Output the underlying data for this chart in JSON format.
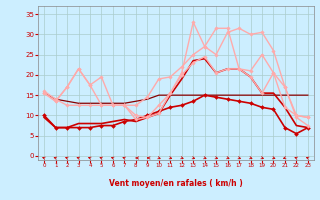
{
  "background_color": "#cceeff",
  "grid_color": "#aacccc",
  "x_labels": [
    "0",
    "1",
    "2",
    "3",
    "4",
    "5",
    "6",
    "7",
    "8",
    "9",
    "10",
    "11",
    "12",
    "13",
    "14",
    "15",
    "16",
    "17",
    "18",
    "19",
    "20",
    "21",
    "22",
    "23"
  ],
  "xlabel": "Vent moyen/en rafales ( km/h )",
  "xlabel_color": "#cc0000",
  "ylabel_color": "#cc0000",
  "yticks": [
    0,
    5,
    10,
    15,
    20,
    25,
    30,
    35
  ],
  "ylim": [
    -1,
    37
  ],
  "xlim": [
    -0.5,
    23.5
  ],
  "lines": [
    {
      "y": [
        15.5,
        14.0,
        13.5,
        13.0,
        13.0,
        13.0,
        13.0,
        13.0,
        13.5,
        14.0,
        15.0,
        15.0,
        15.0,
        15.0,
        15.0,
        15.0,
        15.0,
        15.0,
        15.0,
        15.0,
        15.0,
        15.0,
        15.0,
        15.0
      ],
      "color": "#880000",
      "lw": 0.9,
      "marker": null
    },
    {
      "y": [
        10.0,
        7.0,
        7.0,
        7.0,
        7.0,
        7.5,
        7.5,
        8.5,
        9.0,
        10.0,
        11.0,
        12.0,
        12.5,
        13.5,
        15.0,
        14.5,
        14.0,
        13.5,
        13.0,
        12.0,
        11.5,
        7.0,
        5.5,
        7.0
      ],
      "color": "#cc0000",
      "lw": 1.2,
      "marker": "D",
      "markersize": 2.0
    },
    {
      "y": [
        9.5,
        7.0,
        7.0,
        8.0,
        8.0,
        8.0,
        8.5,
        9.0,
        8.5,
        9.5,
        10.5,
        15.0,
        19.0,
        23.5,
        24.0,
        20.5,
        21.5,
        21.5,
        19.5,
        15.5,
        15.5,
        12.0,
        7.5,
        7.0
      ],
      "color": "#cc0000",
      "lw": 1.2,
      "marker": null
    },
    {
      "y": [
        15.5,
        13.5,
        17.0,
        21.5,
        17.5,
        19.5,
        12.5,
        12.5,
        9.0,
        9.5,
        10.5,
        15.5,
        20.0,
        23.0,
        24.5,
        20.5,
        21.5,
        21.5,
        19.5,
        15.5,
        20.5,
        12.0,
        10.0,
        9.5
      ],
      "color": "#ffaaaa",
      "lw": 1.0,
      "marker": "D",
      "markersize": 1.8
    },
    {
      "y": [
        15.5,
        13.5,
        17.0,
        21.5,
        17.5,
        12.5,
        12.5,
        12.5,
        12.5,
        14.5,
        19.0,
        19.5,
        22.0,
        25.0,
        27.0,
        25.0,
        30.5,
        31.5,
        30.0,
        30.5,
        26.0,
        17.0,
        10.0,
        9.5
      ],
      "color": "#ffaaaa",
      "lw": 1.0,
      "marker": "D",
      "markersize": 1.8
    },
    {
      "y": [
        16.0,
        14.0,
        12.5,
        12.5,
        12.5,
        12.5,
        12.5,
        12.5,
        10.0,
        9.5,
        12.5,
        15.5,
        20.5,
        33.0,
        27.0,
        31.5,
        31.5,
        21.5,
        21.0,
        25.0,
        20.5,
        17.0,
        9.5,
        7.5
      ],
      "color": "#ffaaaa",
      "lw": 1.0,
      "marker": "D",
      "markersize": 1.8
    }
  ],
  "wind_angles_deg": [
    225,
    225,
    225,
    225,
    225,
    225,
    225,
    225,
    270,
    270,
    45,
    45,
    45,
    45,
    45,
    45,
    45,
    45,
    45,
    45,
    45,
    315,
    225,
    225
  ]
}
